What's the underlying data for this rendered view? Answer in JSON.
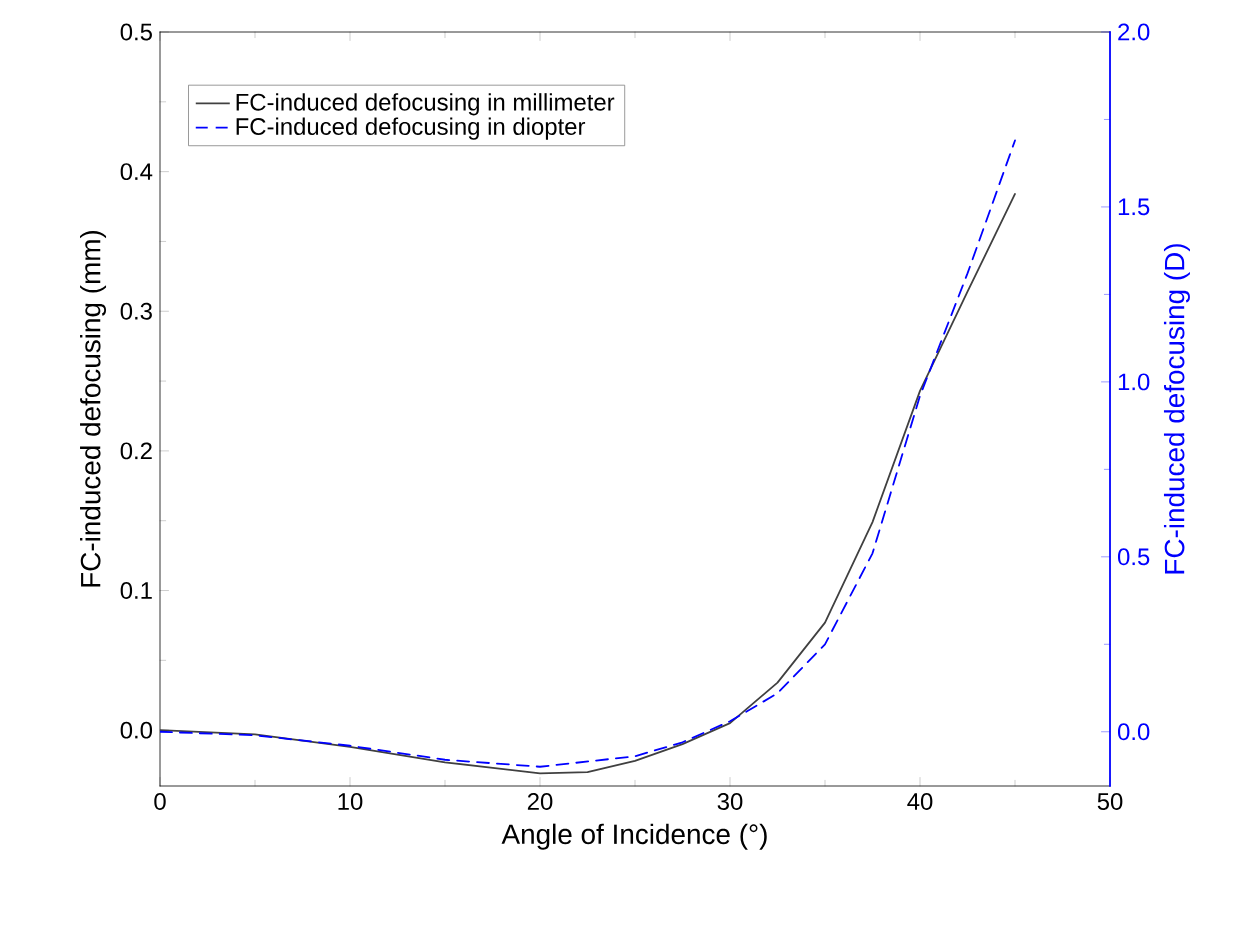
{
  "chart_data": {
    "type": "line",
    "xlabel": "Angle of Incidence (°)",
    "ylabel": "FC-induced defocusing (mm)",
    "y2label": "FC-induced defocusing (D)",
    "xlim": [
      0,
      50
    ],
    "xticks": [
      0,
      10,
      20,
      30,
      40,
      50
    ],
    "ylim": [
      -0.04,
      0.5
    ],
    "yticks": [
      {
        "value": 0,
        "label": "0.0"
      },
      {
        "value": 0.1,
        "label": "0.1"
      },
      {
        "value": 0.2,
        "label": "0.2"
      },
      {
        "value": 0.3,
        "label": "0.3"
      },
      {
        "value": 0.4,
        "label": "0.4"
      },
      {
        "value": 0.5,
        "label": "0.5"
      }
    ],
    "y2lim": [
      -0.155,
      2.0
    ],
    "y2ticks": [
      {
        "value": 0,
        "label": "0.0"
      },
      {
        "value": 0.5,
        "label": "0.5"
      },
      {
        "value": 1,
        "label": "1.0"
      },
      {
        "value": 1.5,
        "label": "1.5"
      },
      {
        "value": 2,
        "label": "2.0"
      }
    ],
    "grid": false,
    "legend": "top left",
    "marker": "none",
    "series": [
      {
        "name": "FC-induced defocusing in millimeter",
        "color": "#404040",
        "line_style": "solid",
        "x": [
          0,
          5,
          10,
          15,
          20,
          22.5,
          25,
          27.5,
          30,
          32.5,
          35,
          37.5,
          40,
          42.5,
          45
        ],
        "values": [
          0,
          -0.003,
          -0.012,
          -0.023,
          -0.031,
          -0.03,
          -0.022,
          -0.01,
          0.005,
          0.034,
          0.077,
          0.149,
          0.243,
          0.314,
          0.384
        ]
      },
      {
        "name": "FC-induced defocusing in diopter",
        "color": "#0000ff",
        "line_style": "dashed",
        "axis": "y2",
        "x": [
          0,
          5,
          10,
          15,
          20,
          25,
          27.5,
          30,
          32.5,
          35,
          37.5,
          40,
          42.5,
          45
        ],
        "values": [
          0,
          -0.01,
          -0.04,
          -0.08,
          -0.1,
          -0.07,
          -0.03,
          0.03,
          0.11,
          0.25,
          0.51,
          0.96,
          1.31,
          1.69
        ]
      }
    ]
  }
}
